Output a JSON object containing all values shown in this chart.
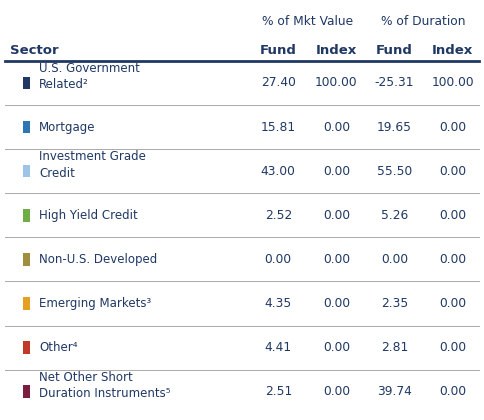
{
  "header_group1": "% of Mkt Value",
  "header_group2": "% of Duration",
  "rows": [
    {
      "label": "U.S. Government\nRelated²",
      "color": "#1f3864",
      "mkt_fund": "27.40",
      "mkt_index": "100.00",
      "dur_fund": "-25.31",
      "dur_index": "100.00"
    },
    {
      "label": "Mortgage",
      "color": "#2e75b6",
      "mkt_fund": "15.81",
      "mkt_index": "0.00",
      "dur_fund": "19.65",
      "dur_index": "0.00"
    },
    {
      "label": "Investment Grade\nCredit",
      "color": "#9dc3e6",
      "mkt_fund": "43.00",
      "mkt_index": "0.00",
      "dur_fund": "55.50",
      "dur_index": "0.00"
    },
    {
      "label": "High Yield Credit",
      "color": "#70ad47",
      "mkt_fund": "2.52",
      "mkt_index": "0.00",
      "dur_fund": "5.26",
      "dur_index": "0.00"
    },
    {
      "label": "Non-U.S. Developed",
      "color": "#9e8e3e",
      "mkt_fund": "0.00",
      "mkt_index": "0.00",
      "dur_fund": "0.00",
      "dur_index": "0.00"
    },
    {
      "label": "Emerging Markets³",
      "color": "#e4a020",
      "mkt_fund": "4.35",
      "mkt_index": "0.00",
      "dur_fund": "2.35",
      "dur_index": "0.00"
    },
    {
      "label": "Other⁴",
      "color": "#c0392b",
      "mkt_fund": "4.41",
      "mkt_index": "0.00",
      "dur_fund": "2.81",
      "dur_index": "0.00"
    },
    {
      "label": "Net Other Short\nDuration Instruments⁵",
      "color": "#7b1e3c",
      "mkt_fund": "2.51",
      "mkt_index": "0.00",
      "dur_fund": "39.74",
      "dur_index": "0.00"
    }
  ],
  "bg_color": "#ffffff",
  "text_color": "#1f3864",
  "header_color": "#1f3864",
  "line_color": "#aaaaaa",
  "thick_line_color": "#1f3864"
}
